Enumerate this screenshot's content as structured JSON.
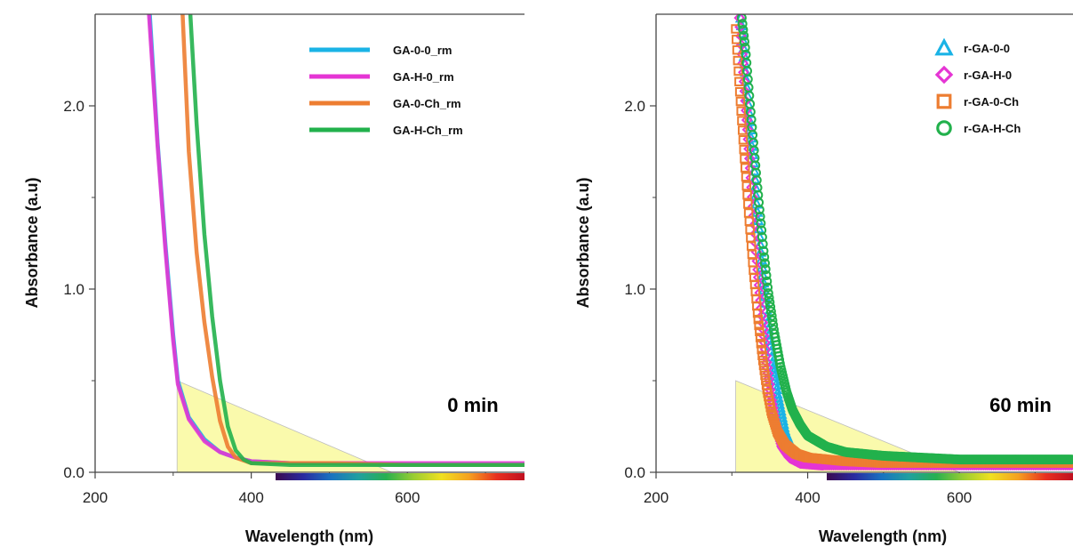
{
  "chart_data": [
    {
      "type": "line",
      "title": "",
      "xlabel": "Wavelength (nm)",
      "ylabel": "Absorbance (a.u)",
      "xlim": [
        200,
        750
      ],
      "ylim": [
        0,
        2.5
      ],
      "xticks": [
        200,
        400,
        600
      ],
      "yticks": [
        0.0,
        1.0,
        2.0
      ],
      "tick_labels_x": [
        "200",
        "400",
        "600"
      ],
      "tick_labels_y": [
        "0.0",
        "1.0",
        "2.0"
      ],
      "annotation": "0 min",
      "legend_position": "top-right",
      "legend_marker": "line",
      "grid": false,
      "series": [
        {
          "name": "GA-0-0_rm",
          "color": "#1ab3e6",
          "x": [
            270,
            280,
            290,
            300,
            306,
            320,
            340,
            360,
            380,
            400,
            450,
            500,
            600,
            750
          ],
          "y": [
            2.5,
            1.8,
            1.25,
            0.75,
            0.5,
            0.3,
            0.18,
            0.11,
            0.08,
            0.06,
            0.05,
            0.05,
            0.04,
            0.04
          ]
        },
        {
          "name": "GA-H-0_rm",
          "color": "#e535d4",
          "x": [
            269,
            280,
            290,
            300,
            306,
            320,
            340,
            360,
            380,
            400,
            450,
            500,
            600,
            750
          ],
          "y": [
            2.5,
            1.78,
            1.22,
            0.72,
            0.48,
            0.29,
            0.17,
            0.11,
            0.08,
            0.06,
            0.05,
            0.05,
            0.05,
            0.05
          ]
        },
        {
          "name": "GA-0-Ch_rm",
          "color": "#ed7d31",
          "x": [
            312,
            320,
            330,
            340,
            350,
            360,
            370,
            380,
            400,
            450,
            500,
            600,
            750
          ],
          "y": [
            2.5,
            1.75,
            1.2,
            0.82,
            0.52,
            0.28,
            0.14,
            0.08,
            0.05,
            0.05,
            0.05,
            0.04,
            0.04
          ]
        },
        {
          "name": "GA-H-Ch_rm",
          "color": "#22b14c",
          "x": [
            322,
            330,
            340,
            350,
            360,
            370,
            380,
            390,
            400,
            450,
            500,
            600,
            750
          ],
          "y": [
            2.5,
            1.9,
            1.3,
            0.85,
            0.5,
            0.25,
            0.12,
            0.07,
            0.05,
            0.04,
            0.04,
            0.04,
            0.04
          ]
        }
      ]
    },
    {
      "type": "scatter",
      "title": "",
      "xlabel": "Wavelength (nm)",
      "ylabel": "Absorbance (a.u)",
      "xlim": [
        200,
        750
      ],
      "ylim": [
        0,
        2.5
      ],
      "xticks": [
        200,
        400,
        600
      ],
      "yticks": [
        0.0,
        1.0,
        2.0
      ],
      "tick_labels_x": [
        "200",
        "400",
        "600"
      ],
      "tick_labels_y": [
        "0.0",
        "1.0",
        "2.0"
      ],
      "annotation": "60 min",
      "legend_position": "top-right",
      "legend_marker": "symbol",
      "grid": false,
      "series": [
        {
          "name": "r-GA-0-0",
          "color": "#1ab3e6",
          "marker": "triangle",
          "x": [
            312,
            318,
            324,
            330,
            336,
            342,
            348,
            354,
            360,
            370,
            380,
            400,
            450,
            500,
            600,
            750
          ],
          "y": [
            2.48,
            2.2,
            1.9,
            1.6,
            1.3,
            1.02,
            0.78,
            0.58,
            0.42,
            0.22,
            0.12,
            0.06,
            0.05,
            0.05,
            0.05,
            0.05
          ]
        },
        {
          "name": "r-GA-H-0",
          "color": "#e535d4",
          "marker": "diamond",
          "x": [
            310,
            316,
            322,
            328,
            334,
            340,
            346,
            352,
            358,
            366,
            376,
            390,
            420,
            500,
            600,
            750
          ],
          "y": [
            2.48,
            2.15,
            1.8,
            1.45,
            1.12,
            0.84,
            0.6,
            0.4,
            0.26,
            0.14,
            0.08,
            0.05,
            0.04,
            0.04,
            0.04,
            0.04
          ]
        },
        {
          "name": "r-GA-0-Ch",
          "color": "#ed7d31",
          "marker": "square",
          "x": [
            305,
            310,
            316,
            322,
            328,
            334,
            340,
            346,
            352,
            360,
            370,
            385,
            400,
            450,
            500,
            600,
            750
          ],
          "y": [
            2.42,
            2.1,
            1.75,
            1.42,
            1.12,
            0.86,
            0.64,
            0.46,
            0.33,
            0.22,
            0.15,
            0.1,
            0.08,
            0.06,
            0.05,
            0.05,
            0.05
          ]
        },
        {
          "name": "r-GA-H-Ch",
          "color": "#22b14c",
          "marker": "circle",
          "x": [
            313,
            318,
            324,
            330,
            336,
            342,
            348,
            356,
            364,
            372,
            380,
            390,
            400,
            425,
            450,
            500,
            550,
            600,
            650,
            700,
            750
          ],
          "y": [
            2.48,
            2.3,
            2.0,
            1.72,
            1.45,
            1.2,
            0.98,
            0.76,
            0.58,
            0.44,
            0.34,
            0.26,
            0.2,
            0.14,
            0.11,
            0.09,
            0.08,
            0.07,
            0.07,
            0.07,
            0.07
          ]
        }
      ]
    }
  ],
  "colors": {
    "shade_triangle": "#fafaa8",
    "spectrum_bar": [
      "#3b0a4f",
      "#2a2aa0",
      "#1a72c0",
      "#20a0a0",
      "#28b050",
      "#9acd32",
      "#f0e020",
      "#f5a020",
      "#e83020",
      "#c01020"
    ]
  }
}
